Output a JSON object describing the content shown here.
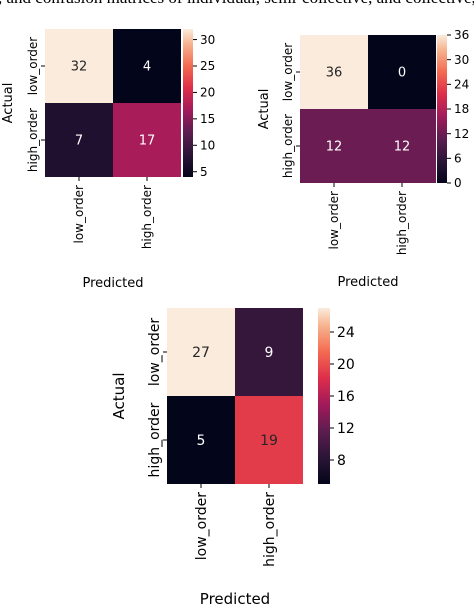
{
  "top_text": ", and confusion matrices of individual, semi-collective, and collective, respectively",
  "chart_data": [
    {
      "type": "heatmap",
      "row_labels": [
        "low_order",
        "high_order"
      ],
      "col_labels": [
        "low_order",
        "high_order"
      ],
      "values": [
        [
          32,
          4
        ],
        [
          7,
          17
        ]
      ],
      "xlabel": "Predicted",
      "ylabel": "Actual",
      "colorbar_range": [
        4,
        32
      ],
      "colorbar_ticks": [
        5,
        10,
        15,
        20,
        25,
        30
      ]
    },
    {
      "type": "heatmap",
      "row_labels": [
        "low_order",
        "high_order"
      ],
      "col_labels": [
        "low_order",
        "high_order"
      ],
      "values": [
        [
          36,
          0
        ],
        [
          12,
          12
        ]
      ],
      "xlabel": "Predicted",
      "ylabel": "Actual",
      "colorbar_range": [
        0,
        36
      ],
      "colorbar_ticks": [
        0,
        6,
        12,
        18,
        24,
        30,
        36
      ]
    },
    {
      "type": "heatmap",
      "row_labels": [
        "low_order",
        "high_order"
      ],
      "col_labels": [
        "low_order",
        "high_order"
      ],
      "values": [
        [
          27,
          9
        ],
        [
          5,
          19
        ]
      ],
      "xlabel": "Predicted",
      "ylabel": "Actual",
      "colorbar_range": [
        5,
        27
      ],
      "colorbar_ticks": [
        8,
        12,
        16,
        20,
        24
      ]
    }
  ]
}
